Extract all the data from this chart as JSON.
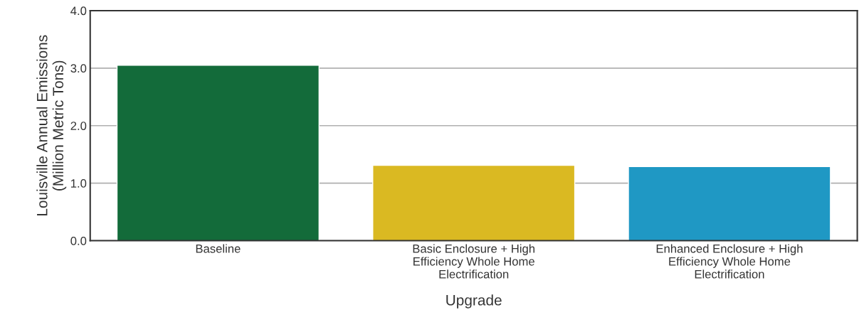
{
  "chart_data": {
    "type": "bar",
    "categories": [
      "Baseline",
      "Basic Enclosure + High\nEfficiency Whole Home\nElectrification",
      "Enhanced Enclosure + High\nEfficiency Whole Home\nElectrification"
    ],
    "values": [
      3.05,
      1.31,
      1.29
    ],
    "colors": [
      "#136b3a",
      "#dab922",
      "#1f98c4"
    ],
    "xlabel": "Upgrade",
    "ylabel": "Louisville Annual Emissions\n(Million Metric Tons)",
    "ylim": [
      0,
      4.0
    ],
    "yticks": [
      {
        "value": 0,
        "label": "0.0"
      },
      {
        "value": 1,
        "label": "1.0"
      },
      {
        "value": 2,
        "label": "2.0"
      },
      {
        "value": 3,
        "label": "3.0"
      },
      {
        "value": 4,
        "label": "4.0"
      }
    ],
    "grid": "y"
  }
}
